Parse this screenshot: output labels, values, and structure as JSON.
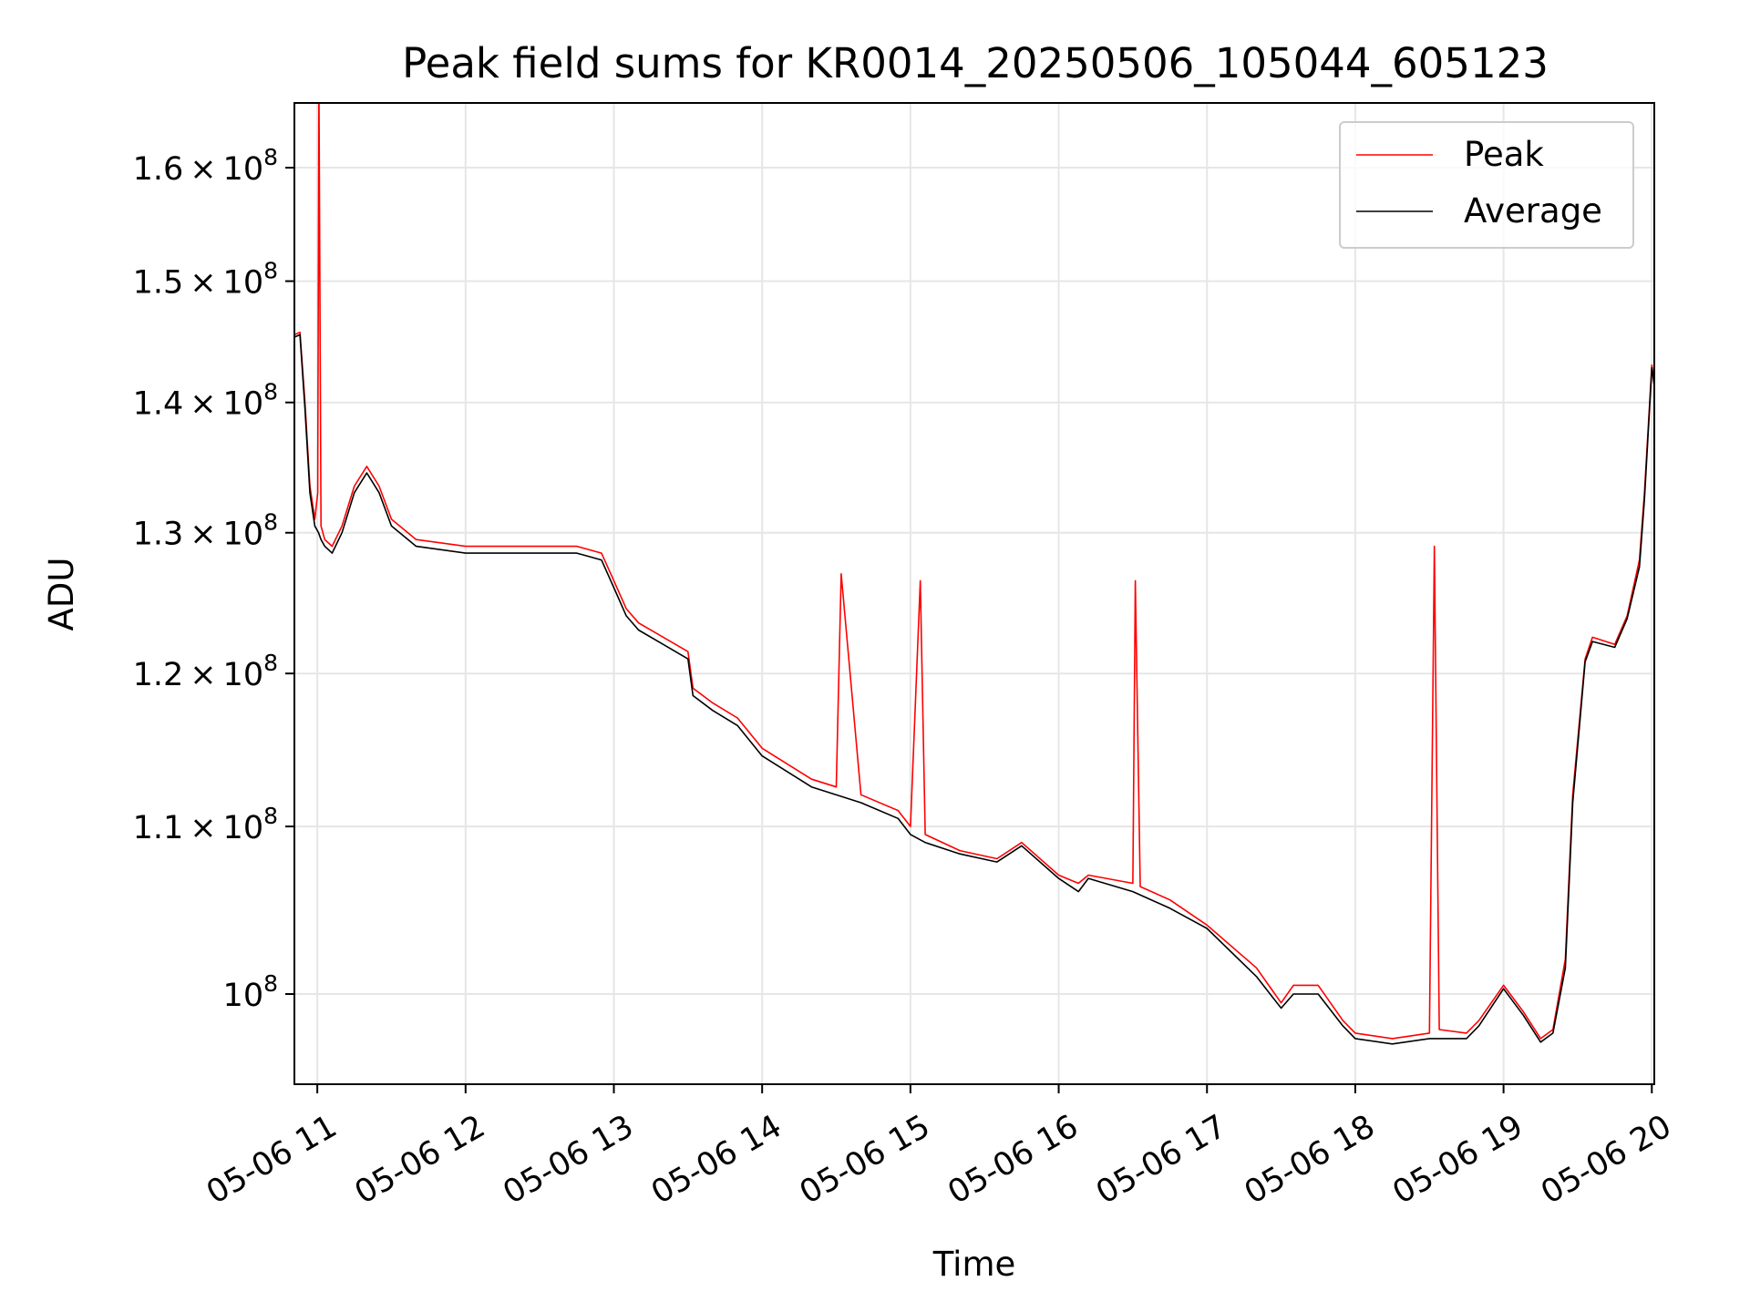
{
  "chart_data": {
    "type": "line",
    "title": "Peak field sums for KR0014_20250506_105044_605123",
    "xlabel": "Time",
    "ylabel": "ADU",
    "yscale": "log",
    "xlim": [
      "2025-05-06T10:50:44",
      "2025-05-06T20:01:00"
    ],
    "ylim": [
      95000000,
      166000000
    ],
    "grid": true,
    "legend_position": "top-right",
    "x_ticks": [
      "05-06 11",
      "05-06 12",
      "05-06 13",
      "05-06 14",
      "05-06 15",
      "05-06 16",
      "05-06 17",
      "05-06 18",
      "05-06 19",
      "05-06 20"
    ],
    "y_ticks": [
      {
        "value": 100000000,
        "mantissa": "",
        "exponent": "8"
      },
      {
        "value": 110000000,
        "mantissa": "1.1",
        "exponent": "8"
      },
      {
        "value": 120000000,
        "mantissa": "1.2",
        "exponent": "8"
      },
      {
        "value": 130000000,
        "mantissa": "1.3",
        "exponent": "8"
      },
      {
        "value": 140000000,
        "mantissa": "1.4",
        "exponent": "8"
      },
      {
        "value": 150000000,
        "mantissa": "1.5",
        "exponent": "8"
      },
      {
        "value": 160000000,
        "mantissa": "1.6",
        "exponent": "8"
      }
    ],
    "series": [
      {
        "name": "Peak",
        "color": "#ff0000",
        "x": [
          "2025-05-06T10:50:44",
          "2025-05-06T10:53:00",
          "2025-05-06T10:55:00",
          "2025-05-06T10:57:00",
          "2025-05-06T10:59:00",
          "2025-05-06T11:00:10",
          "2025-05-06T11:00:40",
          "2025-05-06T11:01:30",
          "2025-05-06T11:03:00",
          "2025-05-06T11:06:00",
          "2025-05-06T11:10:00",
          "2025-05-06T11:15:00",
          "2025-05-06T11:20:00",
          "2025-05-06T11:25:00",
          "2025-05-06T11:30:00",
          "2025-05-06T11:40:00",
          "2025-05-06T12:00:00",
          "2025-05-06T12:30:00",
          "2025-05-06T12:45:00",
          "2025-05-06T12:55:00",
          "2025-05-06T13:00:00",
          "2025-05-06T13:05:00",
          "2025-05-06T13:10:00",
          "2025-05-06T13:20:00",
          "2025-05-06T13:30:00",
          "2025-05-06T13:32:00",
          "2025-05-06T13:40:00",
          "2025-05-06T13:50:00",
          "2025-05-06T14:00:00",
          "2025-05-06T14:20:00",
          "2025-05-06T14:30:00",
          "2025-05-06T14:32:00",
          "2025-05-06T14:40:00",
          "2025-05-06T14:55:00",
          "2025-05-06T15:00:00",
          "2025-05-06T15:04:00",
          "2025-05-06T15:06:00",
          "2025-05-06T15:20:00",
          "2025-05-06T15:35:00",
          "2025-05-06T15:45:00",
          "2025-05-06T16:00:00",
          "2025-05-06T16:08:00",
          "2025-05-06T16:12:00",
          "2025-05-06T16:30:00",
          "2025-05-06T16:31:00",
          "2025-05-06T16:33:00",
          "2025-05-06T16:45:00",
          "2025-05-06T17:00:00",
          "2025-05-06T17:20:00",
          "2025-05-06T17:30:00",
          "2025-05-06T17:35:00",
          "2025-05-06T17:45:00",
          "2025-05-06T17:55:00",
          "2025-05-06T18:00:00",
          "2025-05-06T18:15:00",
          "2025-05-06T18:30:00",
          "2025-05-06T18:32:00",
          "2025-05-06T18:34:00",
          "2025-05-06T18:45:00",
          "2025-05-06T18:50:00",
          "2025-05-06T19:00:00",
          "2025-05-06T19:08:00",
          "2025-05-06T19:15:00",
          "2025-05-06T19:20:00",
          "2025-05-06T19:25:00",
          "2025-05-06T19:28:00",
          "2025-05-06T19:33:00",
          "2025-05-06T19:36:00",
          "2025-05-06T19:45:00",
          "2025-05-06T19:50:00",
          "2025-05-06T19:55:00",
          "2025-05-06T19:57:00",
          "2025-05-06T20:00:00",
          "2025-05-06T20:01:00"
        ],
        "y": [
          145500000,
          145700000,
          140000000,
          133500000,
          131000000,
          133000000,
          168000000,
          130500000,
          129500000,
          129000000,
          130500000,
          133500000,
          135000000,
          133500000,
          131000000,
          129500000,
          129000000,
          129000000,
          129000000,
          128500000,
          126500000,
          124500000,
          123500000,
          122500000,
          121500000,
          119000000,
          118000000,
          117000000,
          115000000,
          113000000,
          112500000,
          127000000,
          112000000,
          111000000,
          110000000,
          126500000,
          109500000,
          108500000,
          108000000,
          109000000,
          107000000,
          106500000,
          107000000,
          106500000,
          126500000,
          106300000,
          105500000,
          104000000,
          101500000,
          99500000,
          100500000,
          100500000,
          98500000,
          97800000,
          97500000,
          97800000,
          129000000,
          98000000,
          97800000,
          98500000,
          100500000,
          99000000,
          97500000,
          98000000,
          102000000,
          112000000,
          121000000,
          122500000,
          122000000,
          124000000,
          128000000,
          133000000,
          143000000,
          141500000
        ]
      },
      {
        "name": "Average",
        "color": "#000000",
        "x": [
          "2025-05-06T10:50:44",
          "2025-05-06T10:53:00",
          "2025-05-06T10:55:00",
          "2025-05-06T10:57:00",
          "2025-05-06T10:59:00",
          "2025-05-06T11:00:30",
          "2025-05-06T11:01:30",
          "2025-05-06T11:03:00",
          "2025-05-06T11:06:00",
          "2025-05-06T11:10:00",
          "2025-05-06T11:15:00",
          "2025-05-06T11:20:00",
          "2025-05-06T11:25:00",
          "2025-05-06T11:30:00",
          "2025-05-06T11:40:00",
          "2025-05-06T12:00:00",
          "2025-05-06T12:30:00",
          "2025-05-06T12:45:00",
          "2025-05-06T12:55:00",
          "2025-05-06T13:00:00",
          "2025-05-06T13:05:00",
          "2025-05-06T13:10:00",
          "2025-05-06T13:20:00",
          "2025-05-06T13:30:00",
          "2025-05-06T13:32:00",
          "2025-05-06T13:40:00",
          "2025-05-06T13:50:00",
          "2025-05-06T14:00:00",
          "2025-05-06T14:20:00",
          "2025-05-06T14:40:00",
          "2025-05-06T14:55:00",
          "2025-05-06T15:00:00",
          "2025-05-06T15:06:00",
          "2025-05-06T15:20:00",
          "2025-05-06T15:35:00",
          "2025-05-06T15:45:00",
          "2025-05-06T16:00:00",
          "2025-05-06T16:08:00",
          "2025-05-06T16:12:00",
          "2025-05-06T16:30:00",
          "2025-05-06T16:45:00",
          "2025-05-06T17:00:00",
          "2025-05-06T17:20:00",
          "2025-05-06T17:30:00",
          "2025-05-06T17:35:00",
          "2025-05-06T17:45:00",
          "2025-05-06T17:55:00",
          "2025-05-06T18:00:00",
          "2025-05-06T18:15:00",
          "2025-05-06T18:30:00",
          "2025-05-06T18:45:00",
          "2025-05-06T18:50:00",
          "2025-05-06T19:00:00",
          "2025-05-06T19:08:00",
          "2025-05-06T19:15:00",
          "2025-05-06T19:20:00",
          "2025-05-06T19:25:00",
          "2025-05-06T19:28:00",
          "2025-05-06T19:33:00",
          "2025-05-06T19:36:00",
          "2025-05-06T19:45:00",
          "2025-05-06T19:50:00",
          "2025-05-06T19:55:00",
          "2025-05-06T19:57:00",
          "2025-05-06T20:00:00",
          "2025-05-06T20:01:00"
        ],
        "y": [
          145300000,
          145500000,
          139500000,
          133000000,
          130500000,
          130000000,
          129500000,
          129000000,
          128500000,
          130000000,
          133000000,
          134500000,
          133000000,
          130500000,
          129000000,
          128500000,
          128500000,
          128500000,
          128000000,
          126000000,
          124000000,
          123000000,
          122000000,
          121000000,
          118500000,
          117500000,
          116500000,
          114500000,
          112500000,
          111500000,
          110500000,
          109500000,
          109000000,
          108300000,
          107800000,
          108800000,
          106800000,
          106000000,
          106800000,
          106000000,
          105000000,
          103800000,
          101000000,
          99200000,
          100000000,
          100000000,
          98200000,
          97500000,
          97200000,
          97500000,
          97500000,
          98200000,
          100300000,
          98800000,
          97300000,
          97800000,
          101500000,
          111500000,
          120800000,
          122200000,
          121800000,
          123800000,
          127500000,
          132500000,
          142800000,
          141300000
        ]
      }
    ]
  }
}
